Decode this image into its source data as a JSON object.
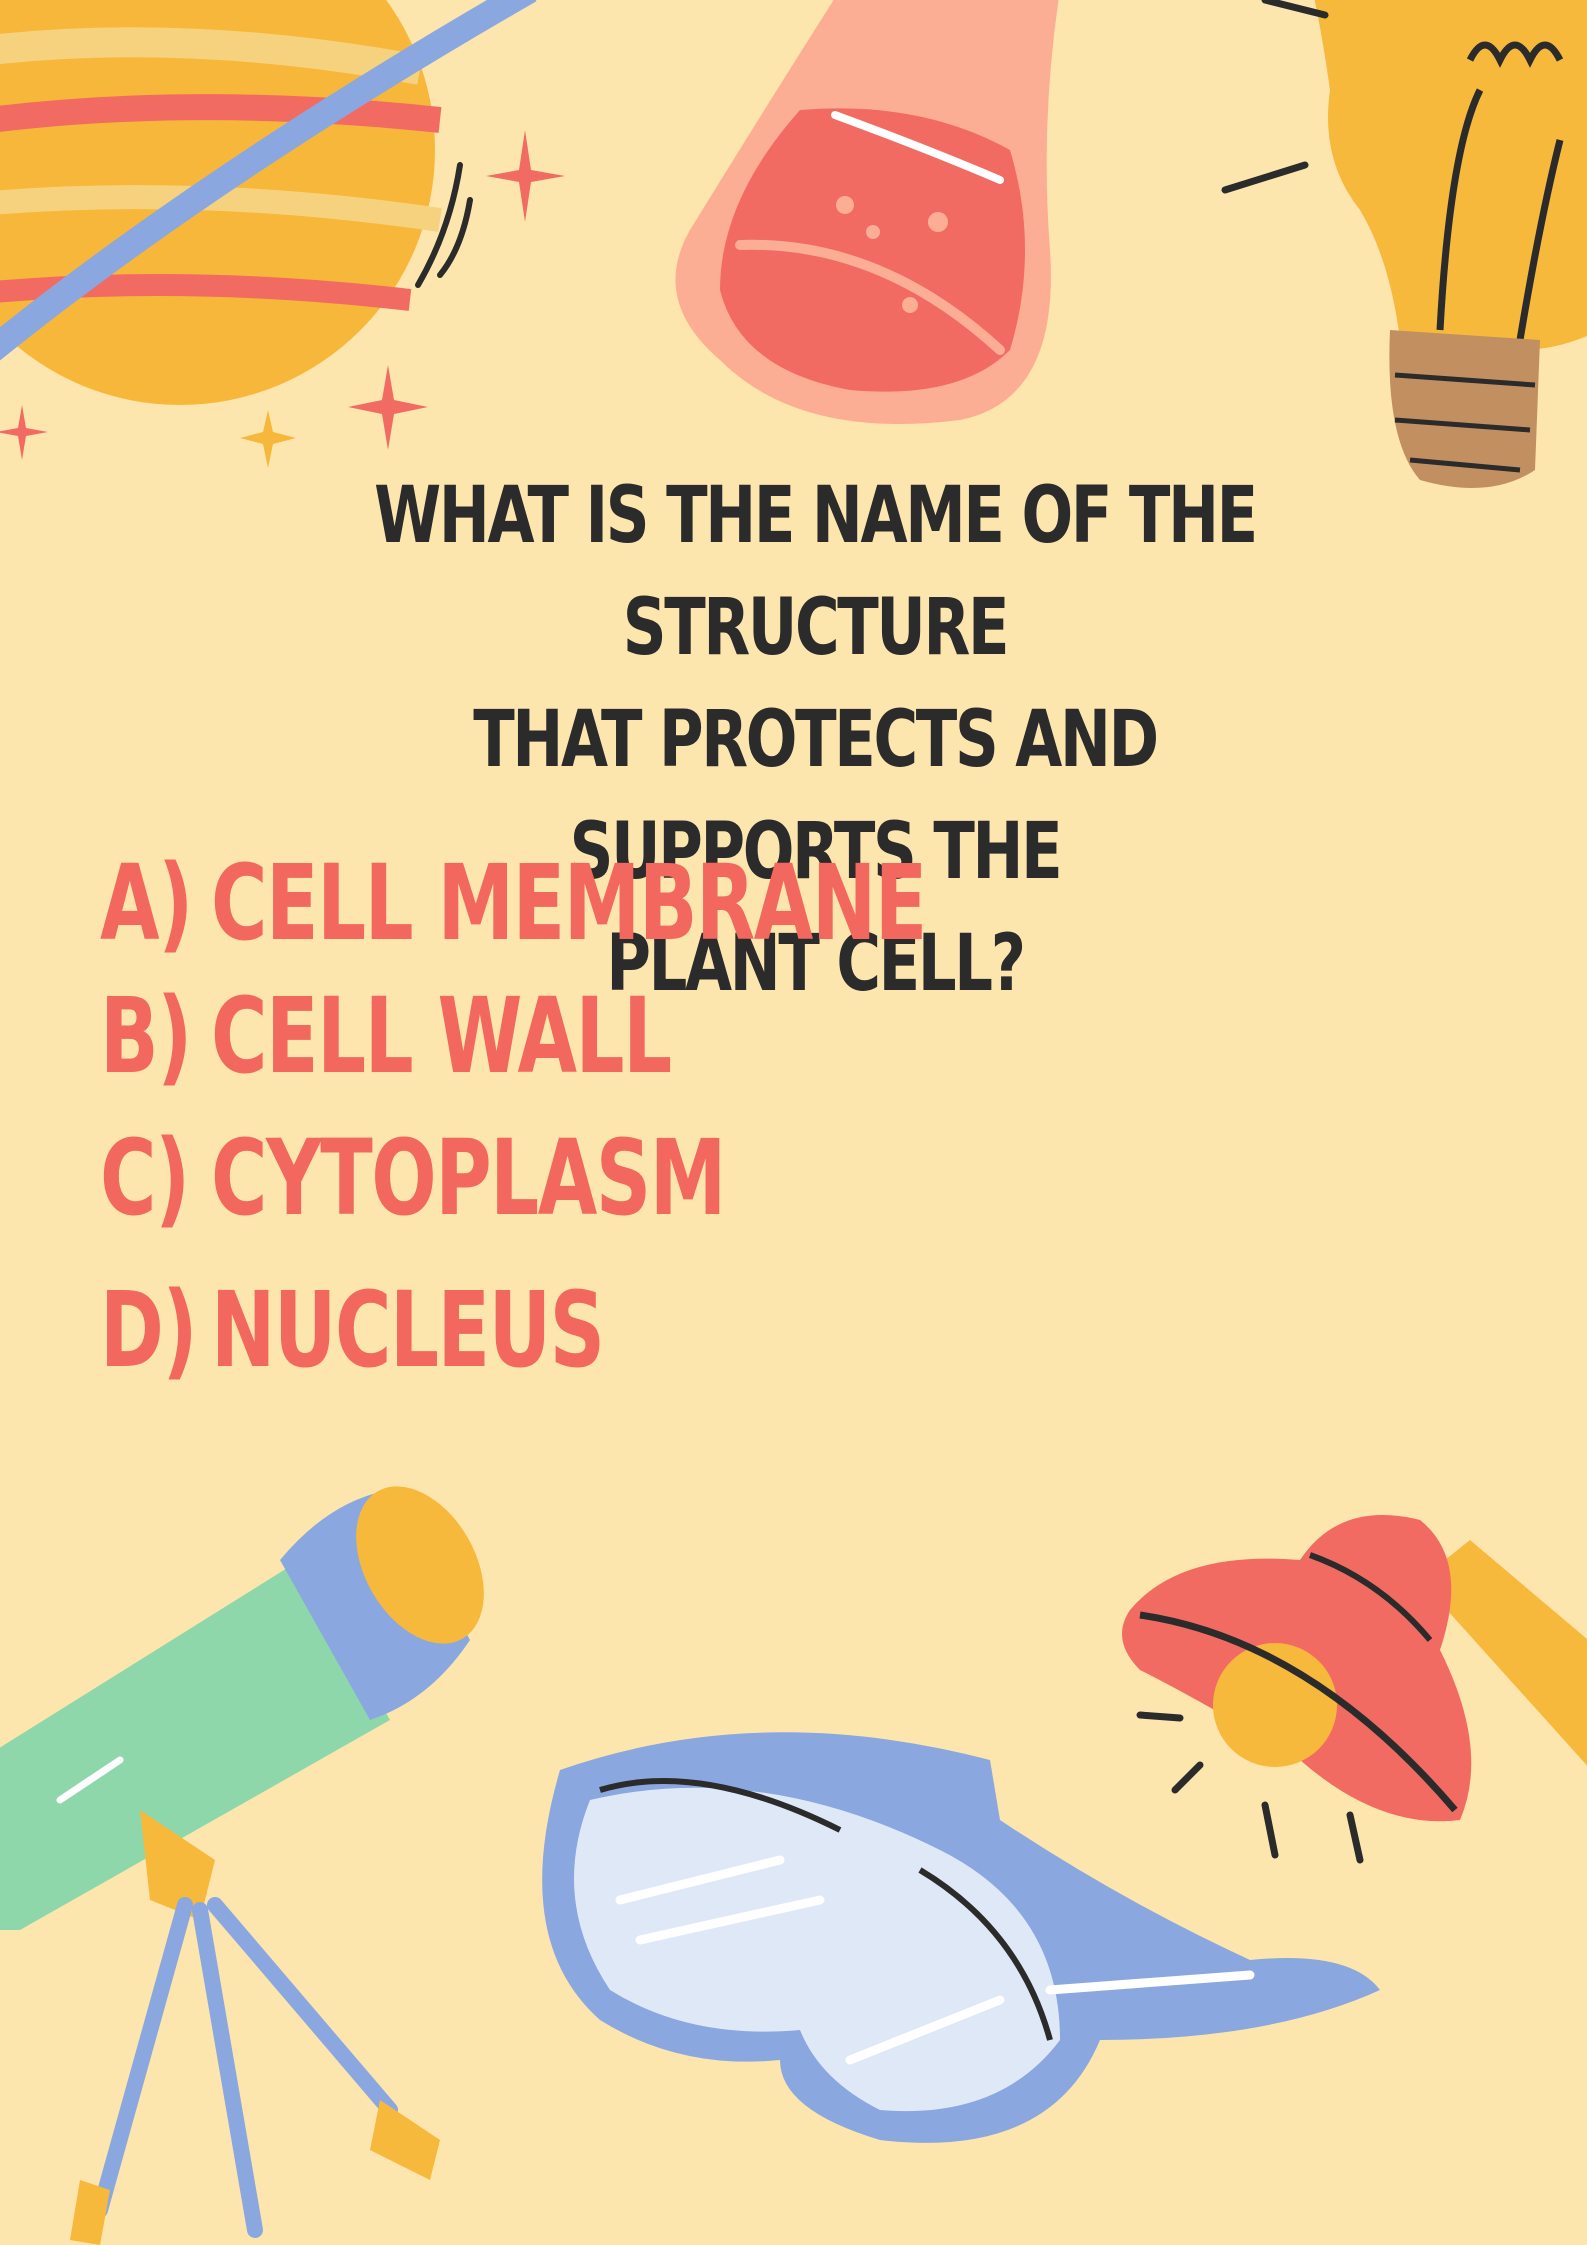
{
  "question": {
    "lines": [
      "WHAT IS THE NAME OF THE STRUCTURE",
      "THAT PROTECTS AND SUPPORTS THE",
      "PLANT CELL?"
    ]
  },
  "options": [
    {
      "letter": "A)",
      "text": "CELL MEMBRANE"
    },
    {
      "letter": "B)",
      "text": "CELL WALL"
    },
    {
      "letter": "C)",
      "text": "CYTOPLASM"
    },
    {
      "letter": "D)",
      "text": "NUCLEUS"
    }
  ],
  "colors": {
    "background": "#fde6ae",
    "question_text": "#2b2b2b",
    "option_text": "#f2675e",
    "planet": "#f7b73a",
    "flask": "#f26b63",
    "bulb": "#f6b93c",
    "telescope": "#8ed7ab",
    "goggles": "#8ba7e0",
    "lamp": "#f26b63"
  },
  "icons": [
    "planet-icon",
    "sparkle-icon",
    "flask-icon",
    "light-bulb-icon",
    "telescope-icon",
    "safety-goggles-icon",
    "desk-lamp-icon"
  ]
}
